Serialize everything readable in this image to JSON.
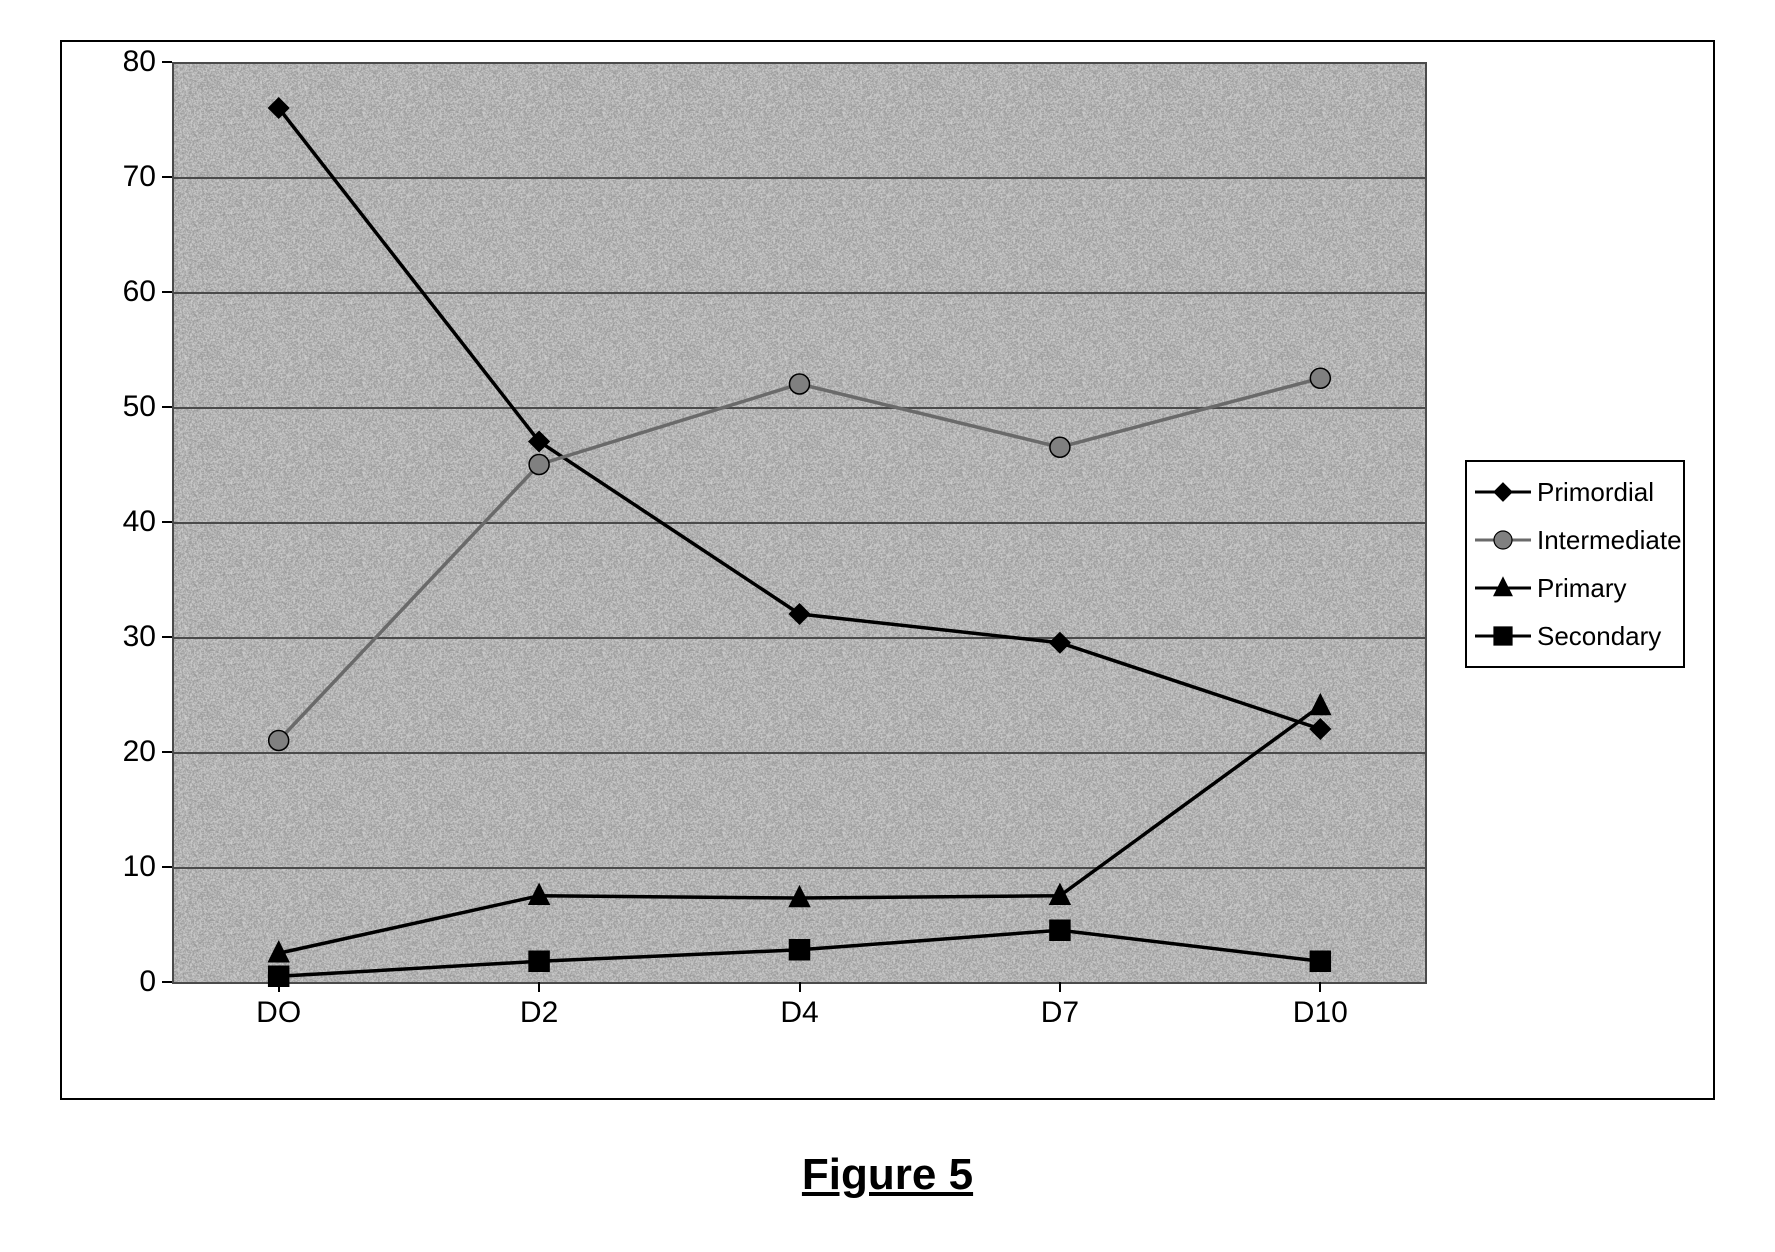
{
  "figure_caption": "Figure 5",
  "chart": {
    "type": "line",
    "background_color": "#a8a8a8",
    "plot_border_color": "#4a4a4a",
    "gridline_color": "#4a4a4a",
    "axis_line_color": "#000000",
    "xlim": [
      0,
      4
    ],
    "ylim": [
      0,
      80
    ],
    "ytick_step": 10,
    "yticks": [
      0,
      10,
      20,
      30,
      40,
      50,
      60,
      70,
      80
    ],
    "x_categories": [
      "DO",
      "D2",
      "D4",
      "D7",
      "D10"
    ],
    "tick_label_fontsize": 30,
    "tick_label_color": "#000000",
    "line_width": 3.5,
    "marker_size": 10,
    "series": [
      {
        "name": "Primordial",
        "marker": "diamond",
        "marker_fill": "#000000",
        "line_color": "#000000",
        "values": [
          76,
          47,
          32,
          29.5,
          22
        ]
      },
      {
        "name": "Intermediate",
        "marker": "circle",
        "marker_fill": "#808080",
        "line_color": "#6a6a6a",
        "values": [
          21,
          45,
          52,
          46.5,
          52.5
        ]
      },
      {
        "name": "Primary",
        "marker": "triangle",
        "marker_fill": "#000000",
        "line_color": "#000000",
        "values": [
          2.5,
          7.5,
          7.3,
          7.5,
          24
        ]
      },
      {
        "name": "Secondary",
        "marker": "square",
        "marker_fill": "#000000",
        "line_color": "#000000",
        "values": [
          0.5,
          1.8,
          2.8,
          4.5,
          1.8
        ]
      }
    ],
    "legend": {
      "border_color": "#000000",
      "background_color": "#ffffff",
      "item_fontsize": 26,
      "text_color": "#000000"
    }
  },
  "caption_fontsize": 44
}
